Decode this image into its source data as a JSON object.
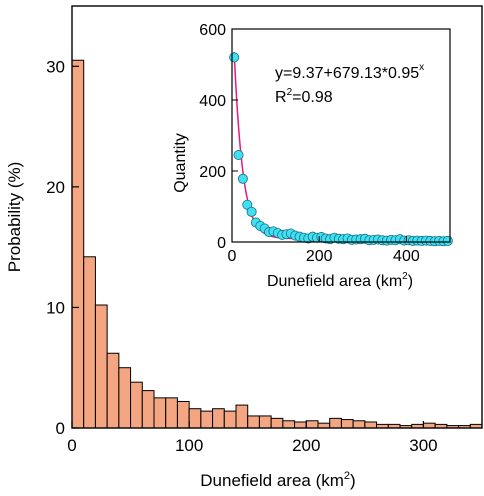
{
  "chart_data": [
    {
      "type": "bar",
      "xlabel": "Dunefield area (km",
      "xlabel_sup": "2",
      "xlabel_end": ")",
      "ylabel": "Probability (%)",
      "xlim": [
        0,
        350
      ],
      "ylim": [
        0,
        35
      ],
      "x_ticks": [
        0,
        100,
        200,
        300
      ],
      "y_ticks": [
        0,
        10,
        20,
        30
      ],
      "bin_width": 10,
      "bar_color": "#f4a582",
      "values": [
        30.5,
        14.2,
        10.2,
        6.2,
        5.0,
        3.8,
        3.1,
        2.5,
        2.5,
        2.2,
        1.6,
        1.4,
        1.6,
        1.4,
        1.9,
        1.0,
        1.0,
        0.8,
        0.6,
        0.5,
        0.6,
        0.4,
        0.8,
        0.7,
        0.6,
        0.5,
        0.3,
        0.3,
        0.2,
        0.3,
        0.4,
        0.3,
        0.2,
        0.2,
        0.3
      ]
    },
    {
      "type": "scatter",
      "xlabel": "Dunefield area (km",
      "xlabel_sup": "2",
      "xlabel_end": ")",
      "ylabel": "Quantity",
      "xlim": [
        0,
        500
      ],
      "ylim": [
        0,
        600
      ],
      "x_ticks": [
        0,
        200,
        400
      ],
      "y_ticks": [
        0,
        200,
        400,
        600
      ],
      "marker_color": "#3fe0f0",
      "fit_color": "#e6197d",
      "fit": {
        "a": 9.37,
        "b": 679.13,
        "c": 0.95,
        "x_start": 5
      },
      "equation": "y=9.37+679.13*0.95",
      "equation_sup": "x",
      "r2_prefix": "R",
      "r2_sup": "2",
      "r2_value": "=0.98",
      "x": [
        5,
        15,
        25,
        35,
        45,
        55,
        65,
        75,
        85,
        95,
        105,
        115,
        125,
        135,
        145,
        155,
        165,
        175,
        185,
        195,
        205,
        215,
        225,
        235,
        245,
        255,
        265,
        275,
        285,
        295,
        305,
        315,
        325,
        335,
        345,
        355,
        365,
        375,
        385,
        395,
        405,
        415,
        425,
        435,
        445,
        455,
        465,
        475,
        485,
        495
      ],
      "y": [
        520,
        245,
        178,
        105,
        85,
        55,
        45,
        38,
        28,
        30,
        25,
        20,
        22,
        24,
        18,
        15,
        12,
        10,
        15,
        12,
        14,
        10,
        8,
        12,
        9,
        8,
        10,
        6,
        7,
        8,
        9,
        5,
        6,
        7,
        5,
        4,
        6,
        5,
        8,
        4,
        5,
        3,
        4,
        3,
        4,
        3,
        2,
        3,
        2,
        3
      ]
    }
  ]
}
